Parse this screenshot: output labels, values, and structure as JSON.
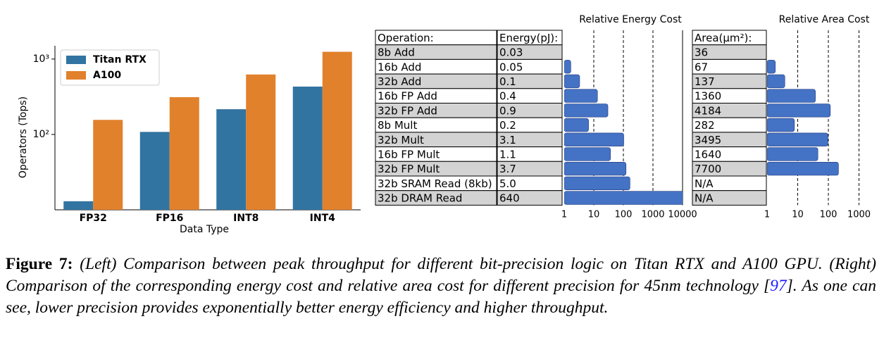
{
  "chart_data": [
    {
      "type": "bar",
      "ylabel": "Operators (Tops)",
      "xlabel": "Data Type",
      "categories": [
        "FP32",
        "FP16",
        "INT8",
        "INT4"
      ],
      "series": [
        {
          "name": "Titan RTX",
          "color": "#3274a1",
          "values": [
            13,
            108,
            216,
            431
          ]
        },
        {
          "name": "A100",
          "color": "#e1812c",
          "values": [
            156,
            312,
            624,
            1248
          ]
        }
      ],
      "log": true,
      "ylim": [
        10,
        1500
      ],
      "yticks": [
        {
          "value": 100,
          "label": "10²"
        },
        {
          "value": 1000,
          "label": "10³"
        }
      ],
      "legend": "upper-left"
    },
    {
      "type": "table-barh",
      "title": "Relative Energy Cost",
      "columns": [
        "Operation:",
        "Energy(pJ):"
      ],
      "categories": [
        "8b Add",
        "16b Add",
        "32b Add",
        "16b FP Add",
        "32b FP Add",
        "8b Mult",
        "32b Mult",
        "16b FP Mult",
        "32b FP Mult",
        "32b SRAM Read (8kb)",
        "32b DRAM Read"
      ],
      "cells": [
        "0.03",
        "0.05",
        "0.1",
        "0.4",
        "0.9",
        "0.2",
        "3.1",
        "1.1",
        "3.7",
        "5.0",
        "640"
      ],
      "values": [
        1,
        1.67,
        3.33,
        13.3,
        30,
        6.67,
        103,
        36.7,
        123,
        167,
        21333
      ],
      "color": "#4472c4",
      "log": true,
      "xlim": [
        1,
        10000
      ],
      "xticks": [
        1,
        10,
        100,
        1000,
        10000
      ],
      "grid": true
    },
    {
      "type": "table-barh",
      "title": "Relative Area Cost",
      "columns": [
        "Area(µm²):"
      ],
      "cells": [
        "36",
        "67",
        "137",
        "1360",
        "4184",
        "282",
        "3495",
        "1640",
        "7700",
        "N/A",
        "N/A"
      ],
      "values": [
        1,
        1.86,
        3.8,
        37.8,
        116,
        7.8,
        97,
        45.6,
        214,
        null,
        null
      ],
      "color": "#4472c4",
      "log": true,
      "xlim": [
        1,
        2960
      ],
      "xticks": [
        1,
        10,
        100,
        1000
      ],
      "grid": true
    }
  ],
  "caption": {
    "label": "Figure 7:",
    "text_before": "(Left) Comparison between peak throughput for different bit-precision logic on Titan RTX and A100 GPU. (Right) Comparison of the corresponding energy cost and relative area cost for different precision for 45nm technology [",
    "ref": "97",
    "text_after": "]. As one can see, lower precision provides exponentially better energy efficiency and higher throughput."
  }
}
